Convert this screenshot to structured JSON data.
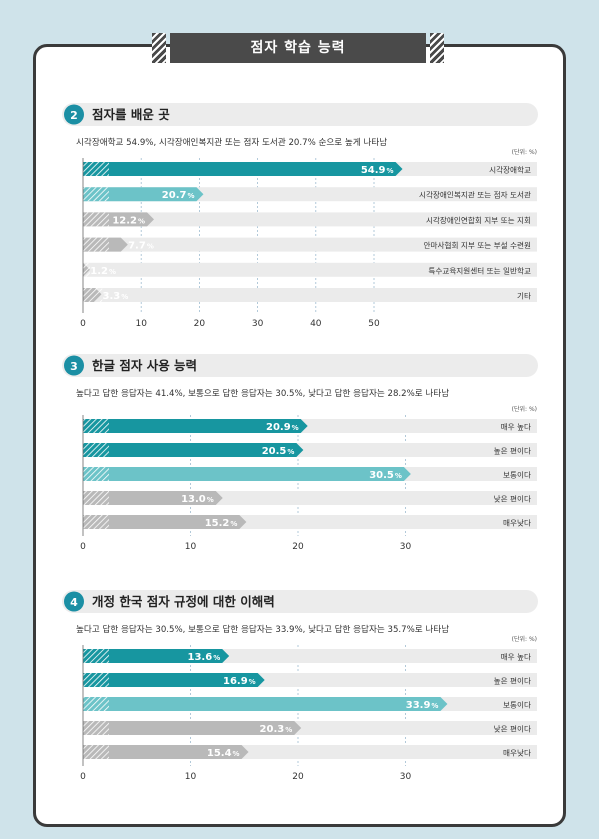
{
  "banner": "점자 학습 능력",
  "colors": {
    "teal_dark": "#1796a0",
    "teal_light": "#6cc3c8",
    "gray": "#b9b9b9",
    "row_bg": "#ebebeb",
    "badge": "#1b8fa4"
  },
  "chart_data": [
    {
      "type": "bar",
      "number": "2",
      "title": "점자를 배운 곳",
      "subtitle": "시각장애학교 54.9%, 시각장애인복지관 또는 점자 도서관 20.7% 순으로 높게 나타남",
      "unit": "(단위: %)",
      "categories": [
        "시각장애학교",
        "시각장애인복지관 또는 점자 도서관",
        "시각장애인연합회 지부 또는 지회",
        "안마사협회 지부 또는 부설 수련원",
        "특수교육지원센터 또는 일반학교",
        "기타"
      ],
      "values": [
        54.9,
        20.7,
        12.2,
        7.7,
        1.2,
        3.3
      ],
      "value_labels": [
        "54.9",
        "20.7",
        "12.2",
        "7.7",
        "1.2",
        "3.3"
      ],
      "styles": [
        "dark",
        "light",
        "gray",
        "gray",
        "gray",
        "gray"
      ],
      "ticks": [
        "0",
        "10",
        "20",
        "30",
        "40",
        "50"
      ],
      "xlim": [
        0,
        72
      ]
    },
    {
      "type": "bar",
      "number": "3",
      "title": "한글 점자 사용 능력",
      "subtitle": "높다고 답한 응답자는 41.4%, 보통으로 답한 응답자는 30.5%, 낮다고 답한 응답자는 28.2%로 나타남",
      "unit": "(단위: %)",
      "categories": [
        "매우 높다",
        "높은 편이다",
        "보통이다",
        "낮은 편이다",
        "매우낮다"
      ],
      "values": [
        20.9,
        20.5,
        30.5,
        13.0,
        15.2
      ],
      "value_labels": [
        "20.9",
        "20.5",
        "30.5",
        "13.0",
        "15.2"
      ],
      "styles": [
        "dark",
        "dark",
        "light",
        "gray",
        "gray"
      ],
      "ticks": [
        "0",
        "10",
        "20",
        "30"
      ],
      "xlim": [
        0,
        42
      ]
    },
    {
      "type": "bar",
      "number": "4",
      "title": "개정 한국 점자 규정에 대한 이해력",
      "subtitle": "높다고 답한 응답자는 30.5%, 보통으로 답한 응답자는 33.9%, 낮다고 답한 응답자는 35.7%로 나타남",
      "unit": "(단위: %)",
      "categories": [
        "매우 높다",
        "높은 편이다",
        "보통이다",
        "낮은 편이다",
        "매우낮다"
      ],
      "values": [
        13.6,
        16.9,
        33.9,
        20.3,
        15.4
      ],
      "value_labels": [
        "13.6",
        "16.9",
        "33.9",
        "20.3",
        "15.4"
      ],
      "styles": [
        "dark",
        "dark",
        "light",
        "gray",
        "gray"
      ],
      "ticks": [
        "0",
        "10",
        "20",
        "30"
      ],
      "xlim": [
        0,
        42
      ]
    }
  ]
}
